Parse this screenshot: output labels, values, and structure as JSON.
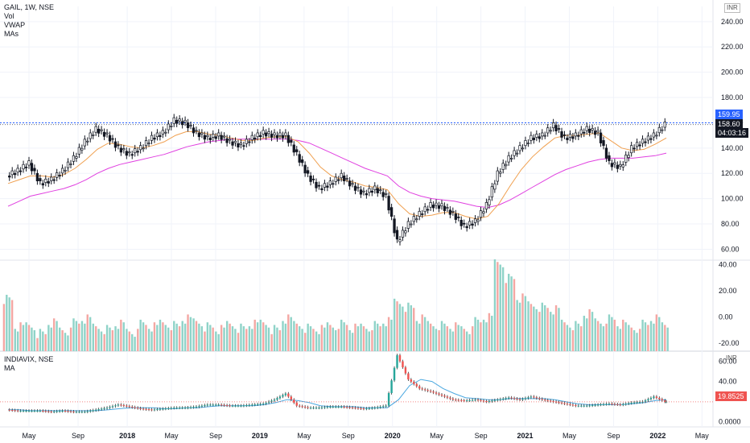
{
  "main_legend": {
    "title": "GAIL, 1W, NSE",
    "indicators": [
      "Vol",
      "VWAP",
      "MAs"
    ]
  },
  "vix_legend": {
    "title": "INDIAVIX, NSE",
    "indicators": [
      "MA"
    ]
  },
  "currency_main": "INR",
  "currency_vix": "INR",
  "price_tags": {
    "resistance": "159.95",
    "last": "158.60",
    "countdown": "04:03:16",
    "vix_last": "19.8525"
  },
  "colors": {
    "up": "#26a69a",
    "down": "#ef5350",
    "candle": "#131722",
    "ma_fast": "#f0a050",
    "ma_slow": "#e040e0",
    "vix_ma": "#4aa8e0",
    "resistance": "#2962ff",
    "vol_up": "#8fd3c8",
    "vol_down": "#f4a7a3"
  },
  "chart_data": [
    {
      "type": "candlestick",
      "series_name": "GAIL, 1W, NSE",
      "x_tick_labels": [
        "May",
        "Sep",
        "2018",
        "May",
        "Sep",
        "2019",
        "May",
        "Sep",
        "2020",
        "May",
        "Sep",
        "2021",
        "May",
        "Sep",
        "2022",
        "May"
      ],
      "y_tick_labels": [
        "240.00",
        "220.00",
        "200.00",
        "180.00",
        "160.00",
        "140.00",
        "120.00",
        "100.00",
        "80.00",
        "60.00"
      ],
      "ylim": [
        52,
        252
      ],
      "resistance_level": 159.95,
      "last_price": 158.6,
      "x": [
        "2017-04",
        "2017-05",
        "2017-06",
        "2017-07",
        "2017-08",
        "2017-09",
        "2017-10",
        "2017-11",
        "2017-12",
        "2018-01",
        "2018-02",
        "2018-03",
        "2018-04",
        "2018-05",
        "2018-06",
        "2018-07",
        "2018-08",
        "2018-09",
        "2018-10",
        "2018-11",
        "2018-12",
        "2019-01",
        "2019-02",
        "2019-03",
        "2019-04",
        "2019-05",
        "2019-06",
        "2019-07",
        "2019-08",
        "2019-09",
        "2019-10",
        "2019-11",
        "2019-12",
        "2020-01",
        "2020-02",
        "2020-03",
        "2020-04",
        "2020-05",
        "2020-06",
        "2020-07",
        "2020-08",
        "2020-09",
        "2020-10",
        "2020-11",
        "2020-12",
        "2021-01",
        "2021-02",
        "2021-03",
        "2021-04",
        "2021-05",
        "2021-06",
        "2021-07",
        "2021-08",
        "2021-09",
        "2021-10",
        "2021-11",
        "2021-12",
        "2022-01",
        "2022-02",
        "2022-03"
      ],
      "close": [
        118,
        122,
        128,
        112,
        115,
        122,
        132,
        145,
        155,
        150,
        140,
        135,
        140,
        148,
        152,
        162,
        160,
        152,
        148,
        150,
        145,
        142,
        148,
        152,
        150,
        150,
        135,
        118,
        108,
        112,
        118,
        110,
        104,
        108,
        102,
        66,
        80,
        88,
        95,
        94,
        88,
        78,
        82,
        95,
        120,
        132,
        140,
        148,
        150,
        158,
        148,
        150,
        155,
        152,
        128,
        125,
        140,
        145,
        150,
        158.6
      ],
      "ma_fast": [
        112,
        115,
        118,
        118,
        117,
        119,
        124,
        131,
        139,
        144,
        143,
        141,
        140,
        142,
        145,
        150,
        153,
        153,
        151,
        150,
        148,
        146,
        146,
        148,
        149,
        149,
        145,
        136,
        125,
        118,
        115,
        113,
        110,
        109,
        107,
        96,
        88,
        86,
        87,
        89,
        89,
        86,
        84,
        86,
        96,
        110,
        123,
        133,
        141,
        148,
        150,
        150,
        151,
        152,
        146,
        140,
        138,
        139,
        143,
        148
      ],
      "ma_slow": [
        94,
        98,
        102,
        104,
        106,
        108,
        111,
        115,
        120,
        124,
        127,
        129,
        131,
        133,
        135,
        138,
        141,
        143,
        145,
        146,
        147,
        147,
        147,
        147,
        147,
        147,
        146,
        144,
        140,
        136,
        132,
        128,
        124,
        121,
        118,
        110,
        105,
        102,
        100,
        99,
        98,
        96,
        94,
        93,
        95,
        99,
        104,
        109,
        114,
        119,
        123,
        126,
        129,
        131,
        132,
        132,
        132,
        133,
        134,
        136
      ]
    },
    {
      "type": "bar",
      "series_name": "Vol",
      "y_tick_labels": [
        "40.00",
        "20.00",
        "0.00",
        "-20.00"
      ],
      "ylim": [
        -26,
        44
      ],
      "x": [
        "2017-04",
        "2017-05",
        "2017-06",
        "2017-07",
        "2017-08",
        "2017-09",
        "2017-10",
        "2017-11",
        "2017-12",
        "2018-01",
        "2018-02",
        "2018-03",
        "2018-04",
        "2018-05",
        "2018-06",
        "2018-07",
        "2018-08",
        "2018-09",
        "2018-10",
        "2018-11",
        "2018-12",
        "2019-01",
        "2019-02",
        "2019-03",
        "2019-04",
        "2019-05",
        "2019-06",
        "2019-07",
        "2019-08",
        "2019-09",
        "2019-10",
        "2019-11",
        "2019-12",
        "2020-01",
        "2020-02",
        "2020-03",
        "2020-04",
        "2020-05",
        "2020-06",
        "2020-07",
        "2020-08",
        "2020-09",
        "2020-10",
        "2020-11",
        "2020-12",
        "2021-01",
        "2021-02",
        "2021-03",
        "2021-04",
        "2021-05",
        "2021-06",
        "2021-07",
        "2021-08",
        "2021-09",
        "2021-10",
        "2021-11",
        "2021-12",
        "2022-01",
        "2022-02",
        "2022-03"
      ],
      "values": [
        14,
        -8,
        -6,
        -12,
        -5,
        -10,
        -4,
        -2,
        -7,
        -9,
        -6,
        -11,
        -5,
        -8,
        -4,
        -6,
        -2,
        -3,
        -7,
        -10,
        -5,
        -8,
        -6,
        -4,
        -9,
        -2,
        -5,
        -8,
        -10,
        -6,
        -5,
        -9,
        -7,
        -6,
        -4,
        12,
        8,
        -2,
        -5,
        -6,
        -8,
        -9,
        -3,
        -1,
        42,
        30,
        14,
        10,
        8,
        5,
        -4,
        -6,
        2,
        -3,
        -1,
        -6,
        -8,
        -5,
        -2,
        -6
      ]
    },
    {
      "type": "line",
      "series_name": "INDIAVIX, NSE",
      "y_tick_labels": [
        "60.00",
        "40.00",
        "0.0000"
      ],
      "ylim": [
        -5,
        70
      ],
      "last_value": 19.8525,
      "x": [
        "2017-04",
        "2017-05",
        "2017-06",
        "2017-07",
        "2017-08",
        "2017-09",
        "2017-10",
        "2017-11",
        "2017-12",
        "2018-01",
        "2018-02",
        "2018-03",
        "2018-04",
        "2018-05",
        "2018-06",
        "2018-07",
        "2018-08",
        "2018-09",
        "2018-10",
        "2018-11",
        "2018-12",
        "2019-01",
        "2019-02",
        "2019-03",
        "2019-04",
        "2019-05",
        "2019-06",
        "2019-07",
        "2019-08",
        "2019-09",
        "2019-10",
        "2019-11",
        "2019-12",
        "2020-01",
        "2020-02",
        "2020-03",
        "2020-04",
        "2020-05",
        "2020-06",
        "2020-07",
        "2020-08",
        "2020-09",
        "2020-10",
        "2020-11",
        "2020-12",
        "2021-01",
        "2021-02",
        "2021-03",
        "2021-04",
        "2021-05",
        "2021-06",
        "2021-07",
        "2021-08",
        "2021-09",
        "2021-10",
        "2021-11",
        "2021-12",
        "2022-01",
        "2022-02",
        "2022-03"
      ],
      "values": [
        12,
        11,
        11,
        11,
        10,
        11,
        10,
        10,
        12,
        14,
        17,
        15,
        13,
        12,
        13,
        14,
        14,
        15,
        17,
        17,
        16,
        16,
        17,
        18,
        22,
        28,
        16,
        14,
        14,
        15,
        15,
        14,
        13,
        14,
        16,
        66,
        42,
        33,
        30,
        26,
        22,
        21,
        22,
        20,
        22,
        24,
        22,
        25,
        22,
        20,
        18,
        16,
        16,
        17,
        18,
        17,
        19,
        20,
        25,
        20
      ],
      "ma": [
        12,
        12,
        11,
        11,
        11,
        11,
        11,
        11,
        11,
        12,
        13,
        14,
        14,
        14,
        13,
        13,
        14,
        14,
        15,
        16,
        16,
        16,
        16,
        17,
        19,
        22,
        21,
        19,
        16,
        15,
        15,
        15,
        14,
        14,
        14,
        22,
        36,
        42,
        40,
        33,
        28,
        24,
        23,
        22,
        22,
        23,
        23,
        23,
        23,
        22,
        20,
        18,
        17,
        17,
        17,
        17,
        18,
        19,
        21,
        22
      ]
    }
  ]
}
